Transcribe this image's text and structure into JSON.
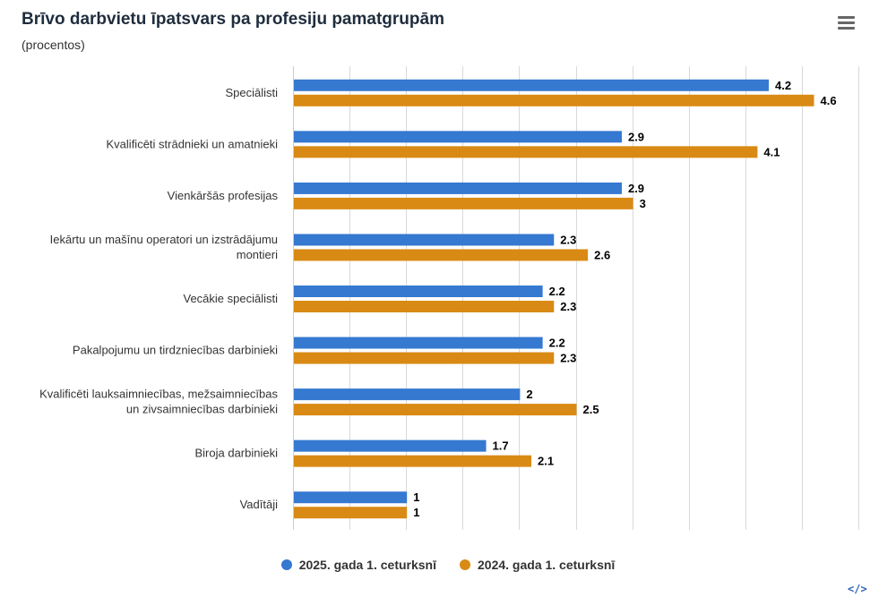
{
  "title": "Brīvo darbvietu īpatsvars pa profesiju pamatgrupām",
  "subtitle": "(procentos)",
  "menu_icon": "hamburger-menu-icon",
  "embed_icon": "</>",
  "colors": {
    "series_2025": "#3579d1",
    "series_2024": "#d98a14",
    "grid": "#d9d9d9"
  },
  "chart_data": {
    "type": "bar",
    "orientation": "horizontal",
    "title": "Brīvo darbvietu īpatsvars pa profesiju pamatgrupām",
    "subtitle": "(procentos)",
    "categories": [
      [
        "Speciālisti"
      ],
      [
        "Kvalificēti strādnieki un amatnieki"
      ],
      [
        "Vienkāršās profesijas"
      ],
      [
        "Iekārtu un mašīnu operatori un izstrādājumu",
        "montieri"
      ],
      [
        "Vecākie speciālisti"
      ],
      [
        "Pakalpojumu un tirdzniecības darbinieki"
      ],
      [
        "Kvalificēti lauksaimniecības, mežsaimniecības",
        "un zivsaimniecības darbinieki"
      ],
      [
        "Biroja darbinieki"
      ],
      [
        "Vadītāji"
      ]
    ],
    "series": [
      {
        "name": "2025. gada 1. ceturksnī",
        "color": "#3579d1",
        "values": [
          4.2,
          2.9,
          2.9,
          2.3,
          2.2,
          2.2,
          2,
          1.7,
          1
        ]
      },
      {
        "name": "2024. gada 1. ceturksnī",
        "color": "#d98a14",
        "values": [
          4.6,
          4.1,
          3,
          2.6,
          2.3,
          2.3,
          2.5,
          2.1,
          1
        ]
      }
    ],
    "xlim": [
      0,
      5
    ],
    "grid": true,
    "data_labels": true,
    "legend_position": "bottom-center"
  }
}
